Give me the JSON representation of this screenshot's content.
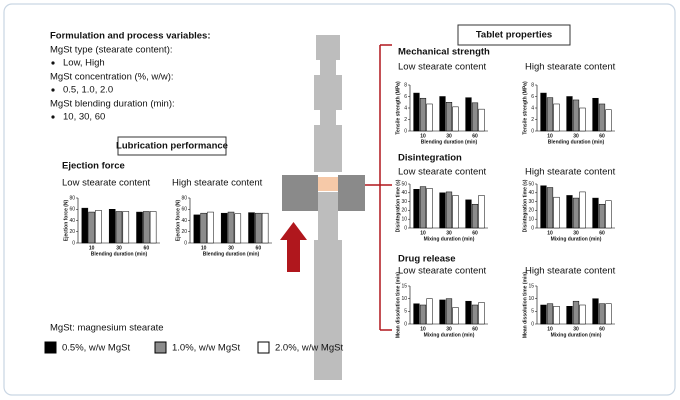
{
  "variables": {
    "title": "Formulation and process variables:",
    "items": [
      {
        "heading": "MgSt type (stearate content):",
        "value": "Low, High"
      },
      {
        "heading": "MgSt concentration (%, w/w):",
        "value": "0.5, 1.0, 2.0"
      },
      {
        "heading": "MgSt blending duration (min):",
        "value": "10, 30, 60"
      }
    ]
  },
  "lubrication_box": "Lubrication performance",
  "tablet_box": "Tablet properties",
  "sections": [
    "Ejection force",
    "Mechanical strength",
    "Disintegration",
    "Drug release"
  ],
  "note": "MgSt: magnesium stearate",
  "legend": [
    {
      "label": "0.5%, w/w MgSt",
      "color": "#000000"
    },
    {
      "label": "1.0%, w/w MgSt",
      "color": "#8c8c8c"
    },
    {
      "label": "2.0%, w/w MgSt",
      "color": "#ffffff"
    }
  ],
  "chart_data": [
    {
      "type": "bar",
      "title": "Low stearate content",
      "ylabel": "Ejection force (N)",
      "xlabel": "Blending duration (min)",
      "categories": [
        "10",
        "30",
        "60"
      ],
      "ylim": [
        0,
        80
      ],
      "yticks": [
        0,
        20,
        40,
        60,
        80
      ],
      "series": [
        {
          "color": "#000000",
          "values": [
            62,
            60,
            55
          ]
        },
        {
          "color": "#8c8c8c",
          "values": [
            55,
            56,
            56
          ]
        },
        {
          "color": "#ffffff",
          "values": [
            58,
            56,
            56
          ]
        }
      ]
    },
    {
      "type": "bar",
      "title": "High stearate content",
      "ylabel": "Ejection force (N)",
      "xlabel": "Blending duration (min)",
      "categories": [
        "10",
        "30",
        "60"
      ],
      "ylim": [
        0,
        80
      ],
      "yticks": [
        0,
        20,
        40,
        60,
        80
      ],
      "series": [
        {
          "color": "#000000",
          "values": [
            50,
            53,
            54
          ]
        },
        {
          "color": "#8c8c8c",
          "values": [
            53,
            55,
            53
          ]
        },
        {
          "color": "#ffffff",
          "values": [
            55,
            52,
            53
          ]
        }
      ]
    },
    {
      "type": "bar",
      "title": "Low stearate content",
      "ylabel": "Tensile strength (MPa)",
      "xlabel": "Blending duration (min)",
      "categories": [
        "10",
        "30",
        "60"
      ],
      "ylim": [
        0,
        8
      ],
      "yticks": [
        0,
        2,
        4,
        6,
        8
      ],
      "series": [
        {
          "color": "#000000",
          "values": [
            6.6,
            6.0,
            5.8
          ]
        },
        {
          "color": "#8c8c8c",
          "values": [
            5.7,
            5.0,
            4.9
          ]
        },
        {
          "color": "#ffffff",
          "values": [
            4.7,
            4.2,
            3.8
          ]
        }
      ]
    },
    {
      "type": "bar",
      "title": "High stearate content",
      "ylabel": "Tensile strength (MPa)",
      "xlabel": "Blending duration (min)",
      "categories": [
        "10",
        "30",
        "60"
      ],
      "ylim": [
        0,
        8
      ],
      "yticks": [
        0,
        2,
        4,
        6,
        8
      ],
      "series": [
        {
          "color": "#000000",
          "values": [
            6.6,
            6.0,
            5.7
          ]
        },
        {
          "color": "#8c8c8c",
          "values": [
            5.8,
            5.4,
            4.7
          ]
        },
        {
          "color": "#ffffff",
          "values": [
            4.7,
            4.0,
            3.7
          ]
        }
      ]
    },
    {
      "type": "bar",
      "title": "Low stearate content",
      "ylabel": "Disintegration time (s)",
      "xlabel": "Mixing duration (min)",
      "categories": [
        "10",
        "30",
        "60"
      ],
      "ylim": [
        0,
        50
      ],
      "yticks": [
        0,
        10,
        20,
        30,
        40,
        50
      ],
      "series": [
        {
          "color": "#000000",
          "values": [
            44,
            40,
            32
          ]
        },
        {
          "color": "#8c8c8c",
          "values": [
            47,
            41,
            27
          ]
        },
        {
          "color": "#ffffff",
          "values": [
            45,
            37,
            37
          ]
        }
      ]
    },
    {
      "type": "bar",
      "title": "High stearate content",
      "ylabel": "Disintegration time (s)",
      "xlabel": "Mixing duration (min)",
      "categories": [
        "10",
        "30",
        "60"
      ],
      "ylim": [
        0,
        50
      ],
      "yticks": [
        0,
        10,
        20,
        30,
        40,
        50
      ],
      "series": [
        {
          "color": "#000000",
          "values": [
            48,
            37,
            34
          ]
        },
        {
          "color": "#8c8c8c",
          "values": [
            46,
            34,
            27
          ]
        },
        {
          "color": "#ffffff",
          "values": [
            35,
            41,
            31
          ]
        }
      ]
    },
    {
      "type": "bar",
      "title": "Low stearate content",
      "ylabel": "Mean dissolution time (min)",
      "xlabel": "Mixing duration (min)",
      "categories": [
        "10",
        "30",
        "60"
      ],
      "ylim": [
        0,
        15
      ],
      "yticks": [
        0,
        5,
        10,
        15
      ],
      "series": [
        {
          "color": "#000000",
          "values": [
            8,
            9.5,
            9
          ]
        },
        {
          "color": "#8c8c8c",
          "values": [
            7.5,
            10,
            7.5
          ]
        },
        {
          "color": "#ffffff",
          "values": [
            10,
            6.5,
            8.5
          ]
        }
      ]
    },
    {
      "type": "bar",
      "title": "High stearate content",
      "ylabel": "Mean dissolution time (min)",
      "xlabel": "Mixing duration (min)",
      "categories": [
        "10",
        "30",
        "60"
      ],
      "ylim": [
        0,
        15
      ],
      "yticks": [
        0,
        5,
        10,
        15
      ],
      "series": [
        {
          "color": "#000000",
          "values": [
            7.5,
            7,
            10
          ]
        },
        {
          "color": "#8c8c8c",
          "values": [
            8,
            9,
            8
          ]
        },
        {
          "color": "#ffffff",
          "values": [
            7,
            7.5,
            8
          ]
        }
      ]
    }
  ]
}
